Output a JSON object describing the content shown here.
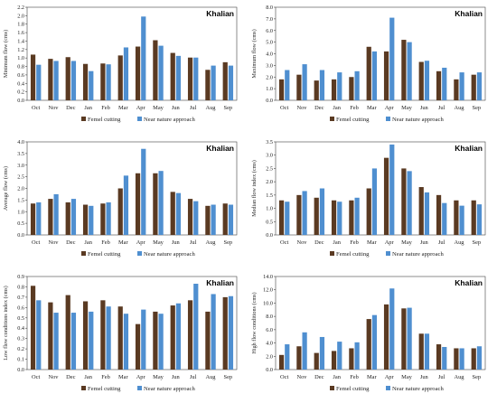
{
  "figure": {
    "site_label": "Khalian"
  },
  "chart_data": [
    {
      "type": "bar",
      "title": "Khalian",
      "ylabel": "Minimum flow (cms)",
      "ylim": [
        0,
        2.2
      ],
      "yticks": [
        0,
        0.2,
        0.4,
        0.6,
        0.8,
        1.0,
        1.2,
        1.4,
        1.6,
        1.8,
        2.0,
        2.2
      ],
      "ytick_decimals": 1,
      "legend_position": "bottom",
      "categories": [
        "Oct",
        "Nov",
        "Dec",
        "Jan",
        "Feb",
        "Mar",
        "Apr",
        "May",
        "Jun",
        "Jul",
        "Aug",
        "Sep"
      ],
      "series": [
        {
          "name": "Femel cutting",
          "color": "#5a3a22",
          "values": [
            1.08,
            0.98,
            1.02,
            0.86,
            0.87,
            1.06,
            1.27,
            1.42,
            1.12,
            1.01,
            0.72,
            0.9
          ]
        },
        {
          "name": "Near nature approach",
          "color": "#4f8fd0",
          "values": [
            0.84,
            0.93,
            0.93,
            0.69,
            0.85,
            1.25,
            1.98,
            1.29,
            1.05,
            1.01,
            0.82,
            0.82
          ]
        }
      ]
    },
    {
      "type": "bar",
      "title": "Khalian",
      "ylabel": "Maximum flow (cms)",
      "ylim": [
        0,
        8.0
      ],
      "yticks": [
        0,
        1.0,
        2.0,
        3.0,
        4.0,
        5.0,
        6.0,
        7.0,
        8.0
      ],
      "ytick_decimals": 1,
      "legend_position": "bottom",
      "categories": [
        "Oct",
        "Nov",
        "Dec",
        "Jan",
        "Feb",
        "Mar",
        "Apr",
        "May",
        "Jun",
        "Jul",
        "Aug",
        "Sep"
      ],
      "series": [
        {
          "name": "Femel cutting",
          "color": "#5a3a22",
          "values": [
            1.8,
            2.2,
            1.7,
            1.8,
            2.0,
            4.6,
            4.2,
            5.2,
            3.3,
            2.5,
            1.8,
            2.2
          ]
        },
        {
          "name": "Near nature approach",
          "color": "#4f8fd0",
          "values": [
            2.6,
            3.1,
            2.6,
            2.4,
            2.5,
            4.2,
            7.1,
            5.0,
            3.4,
            2.8,
            2.4,
            2.4
          ]
        }
      ]
    },
    {
      "type": "bar",
      "title": "Khalian",
      "ylabel": "Average flow (cms)",
      "ylim": [
        0,
        4.0
      ],
      "yticks": [
        0,
        0.5,
        1.0,
        1.5,
        2.0,
        2.5,
        3.0,
        3.5,
        4.0
      ],
      "ytick_decimals": 1,
      "legend_position": "bottom",
      "categories": [
        "Oct",
        "Nov",
        "Dec",
        "Jan",
        "Feb",
        "Mar",
        "Apr",
        "May",
        "Jun",
        "Jul",
        "Aug",
        "Sep"
      ],
      "series": [
        {
          "name": "Femel cutting",
          "color": "#5a3a22",
          "values": [
            1.35,
            1.55,
            1.4,
            1.3,
            1.35,
            2.0,
            2.65,
            2.65,
            1.85,
            1.55,
            1.25,
            1.35
          ]
        },
        {
          "name": "Near nature approach",
          "color": "#4f8fd0",
          "values": [
            1.4,
            1.75,
            1.55,
            1.25,
            1.4,
            2.55,
            3.7,
            2.75,
            1.8,
            1.45,
            1.3,
            1.3
          ]
        }
      ]
    },
    {
      "type": "bar",
      "title": "Khalian",
      "ylabel": "Median flow index (cms)",
      "ylim": [
        0,
        3.5
      ],
      "yticks": [
        0,
        0.5,
        1.0,
        1.5,
        2.0,
        2.5,
        3.0,
        3.5
      ],
      "ytick_decimals": 1,
      "legend_position": "bottom",
      "categories": [
        "Oct",
        "Nov",
        "Dec",
        "Jan",
        "Feb",
        "Mar",
        "Apr",
        "May",
        "Jun",
        "Jul",
        "Aug",
        "Sep"
      ],
      "series": [
        {
          "name": "Femel cutting",
          "color": "#5a3a22",
          "values": [
            1.3,
            1.5,
            1.4,
            1.3,
            1.3,
            1.75,
            2.9,
            2.5,
            1.8,
            1.5,
            1.3,
            1.3
          ]
        },
        {
          "name": "Near nature approach",
          "color": "#4f8fd0",
          "values": [
            1.25,
            1.65,
            1.75,
            1.25,
            1.4,
            2.5,
            3.4,
            2.4,
            1.6,
            1.2,
            1.1,
            1.15
          ]
        }
      ]
    },
    {
      "type": "bar",
      "title": "Khalian",
      "ylabel": "Low flow conditions index (cms)",
      "ylim": [
        0,
        0.9
      ],
      "yticks": [
        0,
        0.1,
        0.2,
        0.3,
        0.4,
        0.5,
        0.6,
        0.7,
        0.8,
        0.9
      ],
      "ytick_decimals": 1,
      "legend_position": "bottom",
      "categories": [
        "Oct",
        "Nov",
        "Dec",
        "Jan",
        "Feb",
        "Mar",
        "Apr",
        "May",
        "Jun",
        "Jul",
        "Aug",
        "Sep"
      ],
      "series": [
        {
          "name": "Femel cutting",
          "color": "#5a3a22",
          "values": [
            0.81,
            0.65,
            0.72,
            0.66,
            0.67,
            0.61,
            0.44,
            0.56,
            0.62,
            0.67,
            0.56,
            0.7
          ]
        },
        {
          "name": "Near nature approach",
          "color": "#4f8fd0",
          "values": [
            0.67,
            0.55,
            0.55,
            0.56,
            0.61,
            0.54,
            0.58,
            0.54,
            0.64,
            0.83,
            0.73,
            0.71
          ]
        }
      ]
    },
    {
      "type": "bar",
      "title": "Khalian",
      "ylabel": "High flow conditions (cms)",
      "ylim": [
        0,
        14.0
      ],
      "yticks": [
        0,
        2.0,
        4.0,
        6.0,
        8.0,
        10.0,
        12.0,
        14.0
      ],
      "ytick_decimals": 1,
      "legend_position": "bottom",
      "categories": [
        "Oct",
        "Nov",
        "Dec",
        "Jan",
        "Feb",
        "Mar",
        "Apr",
        "May",
        "Jun",
        "Jul",
        "Aug",
        "Sep"
      ],
      "series": [
        {
          "name": "Femel cutting",
          "color": "#5a3a22",
          "values": [
            2.2,
            3.5,
            2.5,
            2.8,
            3.2,
            7.6,
            9.8,
            9.2,
            5.4,
            3.8,
            3.2,
            3.2
          ]
        },
        {
          "name": "Near nature approach",
          "color": "#4f8fd0",
          "values": [
            3.8,
            5.6,
            4.9,
            4.2,
            4.1,
            8.2,
            12.2,
            9.3,
            5.4,
            3.4,
            3.2,
            3.5
          ]
        }
      ]
    }
  ]
}
